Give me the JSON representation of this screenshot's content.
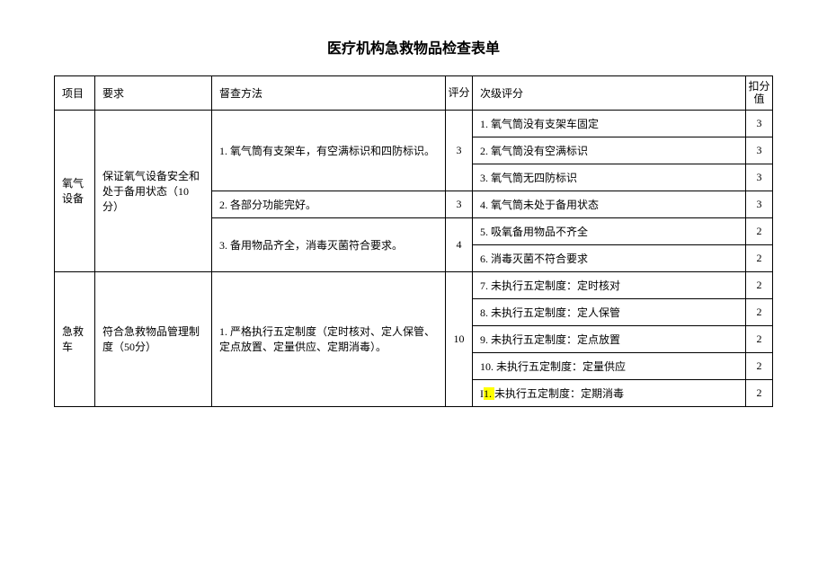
{
  "title": "医疗机构急救物品检查表单",
  "headers": {
    "project": "项目",
    "requirement": "要求",
    "method": "督查方法",
    "score": "评分",
    "sublevel": "次级评分",
    "deduct": "扣分值"
  },
  "sections": [
    {
      "project": "氧气设备",
      "requirement": "保证氧气设备安全和处于备用状态（10分）",
      "methods": [
        {
          "text": "1. 氧气筒有支架车，有空满标识和四防标识。",
          "score": "3",
          "sublevels": [
            {
              "text": "1. 氧气筒没有支架车固定",
              "deduct": "3"
            },
            {
              "text": "2. 氧气筒没有空满标识",
              "deduct": "3"
            },
            {
              "text": "3. 氧气筒无四防标识",
              "deduct": "3"
            }
          ]
        },
        {
          "text": " 2. 各部分功能完好。",
          "score": "3",
          "sublevels": [
            {
              "text": " 4. 氧气筒未处于备用状态",
              "deduct": "3"
            }
          ]
        },
        {
          "text": "3. 备用物品齐全，消毒灭菌符合要求。",
          "score": "4",
          "sublevels": [
            {
              "text": "5. 吸氧备用物品不齐全",
              "deduct": "2"
            },
            {
              "text": "6. 消毒灭菌不符合要求",
              "deduct": "2"
            }
          ]
        }
      ]
    },
    {
      "project": "急救车",
      "requirement": "符合急救物品管理制度（50分）",
      "methods": [
        {
          "text": "1. 严格执行五定制度（定时核对、定人保管、定点放置、定量供应、定期消毒）。",
          "score": "10",
          "sublevels": [
            {
              "text": "7. 未执行五定制度：定时核对",
              "deduct": "2"
            },
            {
              "text": "8. 未执行五定制度：定人保管",
              "deduct": "2"
            },
            {
              "text": "9. 未执行五定制度：定点放置",
              "deduct": "2"
            },
            {
              "text": "10. 未执行五定制度：定量供应",
              "deduct": "2"
            },
            {
              "text": "I1. 未执行五定制度：定期消毒",
              "deduct": "2",
              "highlight_prefix": "1. "
            }
          ]
        }
      ]
    }
  ]
}
